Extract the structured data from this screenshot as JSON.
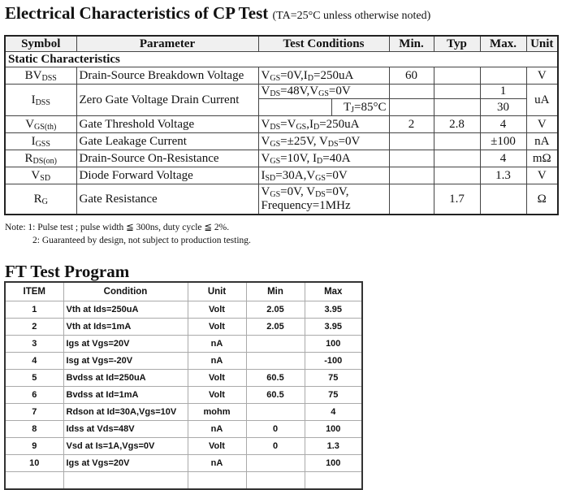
{
  "section1": {
    "title": "Electrical Characteristics of CP Test",
    "subtitle": "(TA=25°C unless otherwise noted)"
  },
  "table1": {
    "headers": [
      "Symbol",
      "Parameter",
      "Test Conditions",
      "Min.",
      "Typ",
      "Max.",
      "Unit"
    ],
    "group": "Static Characteristics",
    "rows": [
      {
        "symbol": [
          {
            "t": "BV"
          },
          {
            "s": "DSS"
          }
        ],
        "parameter": "Drain-Source Breakdown Voltage",
        "cond": [
          {
            "t": "V"
          },
          {
            "s": "GS"
          },
          {
            "t": "=0V,I"
          },
          {
            "s": "D"
          },
          {
            "t": "=250uA"
          }
        ],
        "min": "60",
        "typ": "",
        "max": "",
        "unit": "V"
      },
      {
        "symbol": [
          {
            "t": "I"
          },
          {
            "s": "DSS"
          }
        ],
        "parameter": "Zero Gate Voltage Drain Current",
        "cond": [
          {
            "t": "V"
          },
          {
            "s": "DS"
          },
          {
            "t": "=48V,V"
          },
          {
            "s": "GS"
          },
          {
            "t": "=0V"
          }
        ],
        "cond2": [
          {
            "t": "T"
          },
          {
            "s": "J"
          },
          {
            "t": "=85°C"
          }
        ],
        "min": "",
        "typ": "",
        "max": "1",
        "max2": "30",
        "unit": "uA"
      },
      {
        "symbol": [
          {
            "t": "V"
          },
          {
            "s": "GS(th)"
          }
        ],
        "parameter": "Gate Threshold Voltage",
        "cond": [
          {
            "t": "V"
          },
          {
            "s": "DS"
          },
          {
            "t": "=V"
          },
          {
            "s": "GS"
          },
          {
            "t": ",I"
          },
          {
            "s": "D"
          },
          {
            "t": "=250uA"
          }
        ],
        "min": "2",
        "typ": "2.8",
        "max": "4",
        "unit": "V"
      },
      {
        "symbol": [
          {
            "t": "I"
          },
          {
            "s": "GSS"
          }
        ],
        "parameter": "Gate Leakage Current",
        "cond": [
          {
            "t": "V"
          },
          {
            "s": "GS"
          },
          {
            "t": "=±25V, V"
          },
          {
            "s": "DS"
          },
          {
            "t": "=0V"
          }
        ],
        "min": "",
        "typ": "",
        "max": "±100",
        "unit": "nA"
      },
      {
        "symbol": [
          {
            "t": "R"
          },
          {
            "s": "DS(on)"
          }
        ],
        "parameter": "Drain-Source On-Resistance",
        "cond": [
          {
            "t": "V"
          },
          {
            "s": "GS"
          },
          {
            "t": "=10V, I"
          },
          {
            "s": "D"
          },
          {
            "t": "=40A"
          }
        ],
        "min": "",
        "typ": "",
        "max": "4",
        "unit": "mΩ"
      },
      {
        "symbol": [
          {
            "t": "V"
          },
          {
            "s": "SD"
          }
        ],
        "parameter": "Diode Forward Voltage",
        "cond": [
          {
            "t": "I"
          },
          {
            "s": "SD"
          },
          {
            "t": "=30A,V"
          },
          {
            "s": "GS"
          },
          {
            "t": "=0V"
          }
        ],
        "min": "",
        "typ": "",
        "max": "1.3",
        "unit": "V"
      },
      {
        "symbol": [
          {
            "t": "R"
          },
          {
            "s": "G"
          }
        ],
        "parameter": "Gate Resistance",
        "cond": [
          {
            "t": "V"
          },
          {
            "s": "GS"
          },
          {
            "t": "=0V, V"
          },
          {
            "s": "DS"
          },
          {
            "t": "=0V,"
          },
          {
            "br": 1
          },
          {
            "t": "Frequency=1MHz"
          }
        ],
        "min": "",
        "typ": "1.7",
        "max": "",
        "unit": "Ω"
      }
    ]
  },
  "notes": [
    "Note: 1: Pulse test ; pulse width ≦ 300ns, duty cycle ≦ 2%.",
    "2: Guaranteed by design, not subject to production testing."
  ],
  "section2": {
    "title": "FT Test Program"
  },
  "table2": {
    "headers": [
      "ITEM",
      "Condition",
      "Unit",
      "Min",
      "Max"
    ],
    "rows": [
      [
        "1",
        "Vth at Ids=250uA",
        "Volt",
        "2.05",
        "3.95"
      ],
      [
        "2",
        "Vth at Ids=1mA",
        "Volt",
        "2.05",
        "3.95"
      ],
      [
        "3",
        "Igs at Vgs=20V",
        "nA",
        "",
        "100"
      ],
      [
        "4",
        "Isg at Vgs=-20V",
        "nA",
        "",
        "-100"
      ],
      [
        "5",
        "Bvdss at Id=250uA",
        "Volt",
        "60.5",
        "75"
      ],
      [
        "6",
        "Bvdss at Id=1mA",
        "Volt",
        "60.5",
        "75"
      ],
      [
        "7",
        "Rdson at Id=30A,Vgs=10V",
        "mohm",
        "",
        "4"
      ],
      [
        "8",
        "Idss at Vds=48V",
        "nA",
        "0",
        "100"
      ],
      [
        "9",
        "Vsd at Is=1A,Vgs=0V",
        "Volt",
        "0",
        "1.3"
      ],
      [
        "10",
        "Igs at Vgs=20V",
        "nA",
        "",
        "100"
      ],
      [
        "",
        "",
        "",
        "",
        ""
      ]
    ]
  }
}
